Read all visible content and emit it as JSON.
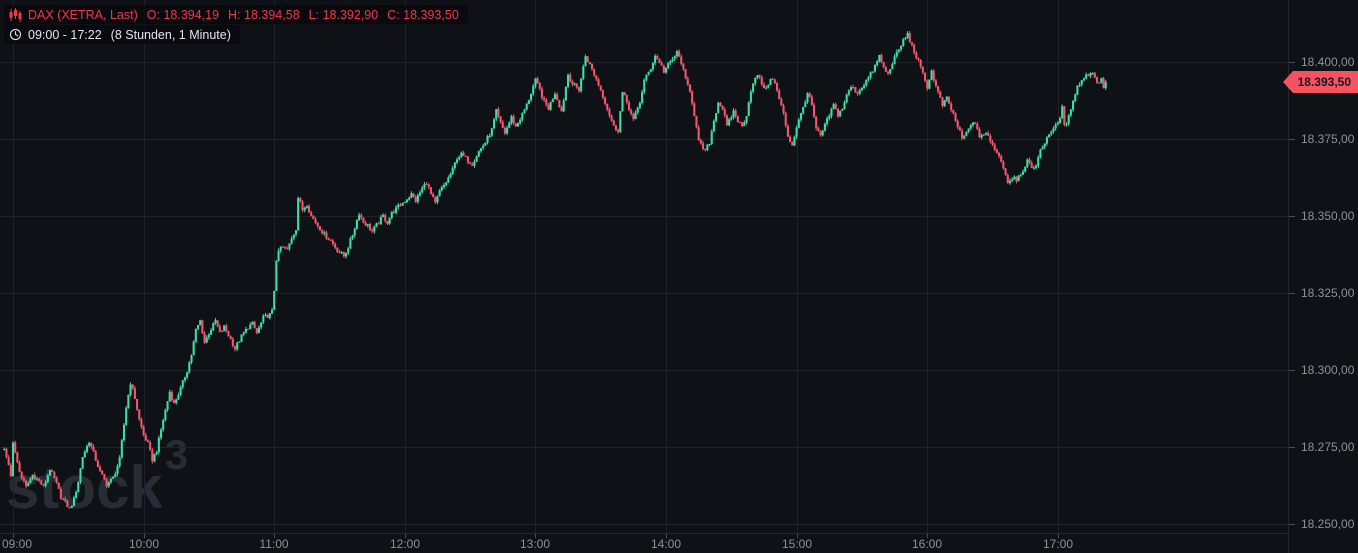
{
  "header": {
    "symbol_line": {
      "icon": "candlestick-icon",
      "symbol": "DAX (XETRA, Last)",
      "ohlc": [
        {
          "label": "O:",
          "value": "18.394,19"
        },
        {
          "label": "H:",
          "value": "18.394,58"
        },
        {
          "label": "L:",
          "value": "18.392,90"
        },
        {
          "label": "C:",
          "value": "18.393,50"
        }
      ]
    },
    "session_line": {
      "icon": "clock-icon",
      "range": "09:00 - 17:22",
      "detail": "(8 Stunden, 1 Minute)"
    }
  },
  "watermark": {
    "text": "stock",
    "sup": "3"
  },
  "price_axis": {
    "ticks": [
      {
        "value": 18400,
        "label": "18.400,00"
      },
      {
        "value": 18375,
        "label": "18.375,00"
      },
      {
        "value": 18350,
        "label": "18.350,00"
      },
      {
        "value": 18325,
        "label": "18.325,00"
      },
      {
        "value": 18300,
        "label": "18.300,00"
      },
      {
        "value": 18275,
        "label": "18.275,00"
      },
      {
        "value": 18250,
        "label": "18.250,00"
      }
    ],
    "last_price_label": "18.393,50",
    "last_price_value": 18393.5
  },
  "time_axis": {
    "ticks": [
      {
        "minute": 0,
        "label": "09:00"
      },
      {
        "minute": 60,
        "label": "10:00"
      },
      {
        "minute": 120,
        "label": "11:00"
      },
      {
        "minute": 180,
        "label": "12:00"
      },
      {
        "minute": 240,
        "label": "13:00"
      },
      {
        "minute": 300,
        "label": "14:00"
      },
      {
        "minute": 360,
        "label": "15:00"
      },
      {
        "minute": 420,
        "label": "16:00"
      },
      {
        "minute": 480,
        "label": "17:00"
      }
    ]
  },
  "chart_data": {
    "type": "candlestick",
    "title": "DAX (XETRA, Last)",
    "interval": "1 Minute",
    "session": "09:00 - 17:22",
    "current_bar": {
      "open": 18394.19,
      "high": 18394.58,
      "low": 18392.9,
      "close": 18393.5
    },
    "last_price": 18393.5,
    "day_open_approx": 18276,
    "day_high_approx": 18410,
    "day_low_approx": 18254,
    "x_tick_labels": [
      "09:00",
      "10:00",
      "11:00",
      "12:00",
      "13:00",
      "14:00",
      "15:00",
      "16:00",
      "17:00"
    ],
    "y_ticks": [
      18400,
      18375,
      18350,
      18325,
      18300,
      18275,
      18250
    ],
    "y_tick_labels": [
      "18.400,00",
      "18.375,00",
      "18.350,00",
      "18.325,00",
      "18.300,00",
      "18.275,00",
      "18.250,00"
    ],
    "ylim": [
      18247,
      18420
    ],
    "xlim_minutes": [
      -6,
      586
    ],
    "grid": true,
    "legend_position": "top-left",
    "colors": {
      "up": "#3adfa8",
      "down": "#f5566c",
      "grid": "#1c212b",
      "background": "#0e1116",
      "accent_red": "#f23645",
      "tag": "#f7525f",
      "axis_text": "#8d919b"
    },
    "keyframes_unit": "minutes since 09:00 (1-minute bars interpolated between keyframes)",
    "price_keyframes": [
      [
        -4,
        18274
      ],
      [
        -2,
        18269
      ],
      [
        -1,
        18266
      ],
      [
        0,
        18277
      ],
      [
        1,
        18273
      ],
      [
        3,
        18267
      ],
      [
        6,
        18262
      ],
      [
        9,
        18266
      ],
      [
        12,
        18264
      ],
      [
        14,
        18262
      ],
      [
        17,
        18268
      ],
      [
        20,
        18263
      ],
      [
        22,
        18259
      ],
      [
        25,
        18256
      ],
      [
        26,
        18255
      ],
      [
        28,
        18258
      ],
      [
        30,
        18264
      ],
      [
        32,
        18272
      ],
      [
        35,
        18277
      ],
      [
        37,
        18273
      ],
      [
        40,
        18267
      ],
      [
        43,
        18263
      ],
      [
        46,
        18265
      ],
      [
        49,
        18271
      ],
      [
        52,
        18288
      ],
      [
        54,
        18296
      ],
      [
        56,
        18291
      ],
      [
        58,
        18284
      ],
      [
        60,
        18279
      ],
      [
        62,
        18276
      ],
      [
        64,
        18271
      ],
      [
        66,
        18274
      ],
      [
        69,
        18284
      ],
      [
        72,
        18293
      ],
      [
        74,
        18289
      ],
      [
        77,
        18294
      ],
      [
        80,
        18300
      ],
      [
        82,
        18305
      ],
      [
        84,
        18313
      ],
      [
        86,
        18316
      ],
      [
        88,
        18309
      ],
      [
        90,
        18312
      ],
      [
        93,
        18316
      ],
      [
        95,
        18312
      ],
      [
        97,
        18314
      ],
      [
        100,
        18310
      ],
      [
        102,
        18307
      ],
      [
        105,
        18311
      ],
      [
        108,
        18314
      ],
      [
        110,
        18315
      ],
      [
        112,
        18312
      ],
      [
        115,
        18317
      ],
      [
        118,
        18318
      ],
      [
        119,
        18319
      ],
      [
        120,
        18326
      ],
      [
        121,
        18336
      ],
      [
        123,
        18340
      ],
      [
        126,
        18339
      ],
      [
        128,
        18343
      ],
      [
        130,
        18346
      ],
      [
        131,
        18356
      ],
      [
        133,
        18352
      ],
      [
        135,
        18354
      ],
      [
        137,
        18350
      ],
      [
        140,
        18347
      ],
      [
        143,
        18344
      ],
      [
        146,
        18342
      ],
      [
        149,
        18339
      ],
      [
        152,
        18337
      ],
      [
        154,
        18340
      ],
      [
        156,
        18344
      ],
      [
        159,
        18351
      ],
      [
        161,
        18348
      ],
      [
        163,
        18347
      ],
      [
        165,
        18345
      ],
      [
        168,
        18348
      ],
      [
        170,
        18350
      ],
      [
        172,
        18348
      ],
      [
        174,
        18351
      ],
      [
        177,
        18353
      ],
      [
        180,
        18355
      ],
      [
        183,
        18357
      ],
      [
        185,
        18355
      ],
      [
        188,
        18359
      ],
      [
        190,
        18361
      ],
      [
        192,
        18357
      ],
      [
        194,
        18354
      ],
      [
        196,
        18358
      ],
      [
        199,
        18361
      ],
      [
        202,
        18365
      ],
      [
        204,
        18369
      ],
      [
        206,
        18370
      ],
      [
        209,
        18368
      ],
      [
        211,
        18367
      ],
      [
        214,
        18371
      ],
      [
        217,
        18374
      ],
      [
        220,
        18378
      ],
      [
        222,
        18384
      ],
      [
        224,
        18380
      ],
      [
        226,
        18377
      ],
      [
        229,
        18382
      ],
      [
        231,
        18379
      ],
      [
        234,
        18383
      ],
      [
        236,
        18386
      ],
      [
        238,
        18390
      ],
      [
        240,
        18394
      ],
      [
        242,
        18391
      ],
      [
        244,
        18387
      ],
      [
        246,
        18385
      ],
      [
        249,
        18390
      ],
      [
        252,
        18384
      ],
      [
        255,
        18396
      ],
      [
        257,
        18393
      ],
      [
        260,
        18391
      ],
      [
        263,
        18402
      ],
      [
        265,
        18399
      ],
      [
        267,
        18396
      ],
      [
        270,
        18391
      ],
      [
        273,
        18385
      ],
      [
        276,
        18379
      ],
      [
        278,
        18378
      ],
      [
        280,
        18390
      ],
      [
        282,
        18387
      ],
      [
        285,
        18381
      ],
      [
        288,
        18387
      ],
      [
        290,
        18394
      ],
      [
        293,
        18398
      ],
      [
        295,
        18402
      ],
      [
        297,
        18400
      ],
      [
        299,
        18397
      ],
      [
        302,
        18400
      ],
      [
        305,
        18403
      ],
      [
        307,
        18400
      ],
      [
        309,
        18394
      ],
      [
        311,
        18391
      ],
      [
        313,
        18383
      ],
      [
        315,
        18374
      ],
      [
        318,
        18371
      ],
      [
        320,
        18374
      ],
      [
        322,
        18381
      ],
      [
        324,
        18387
      ],
      [
        326,
        18385
      ],
      [
        328,
        18379
      ],
      [
        331,
        18384
      ],
      [
        333,
        18381
      ],
      [
        335,
        18379
      ],
      [
        337,
        18383
      ],
      [
        339,
        18391
      ],
      [
        342,
        18396
      ],
      [
        344,
        18393
      ],
      [
        346,
        18391
      ],
      [
        348,
        18395
      ],
      [
        350,
        18393
      ],
      [
        352,
        18388
      ],
      [
        354,
        18383
      ],
      [
        356,
        18376
      ],
      [
        358,
        18373
      ],
      [
        360,
        18379
      ],
      [
        362,
        18383
      ],
      [
        365,
        18390
      ],
      [
        367,
        18386
      ],
      [
        369,
        18378
      ],
      [
        371,
        18376
      ],
      [
        374,
        18381
      ],
      [
        377,
        18386
      ],
      [
        379,
        18383
      ],
      [
        381,
        18385
      ],
      [
        383,
        18389
      ],
      [
        385,
        18392
      ],
      [
        388,
        18390
      ],
      [
        390,
        18392
      ],
      [
        392,
        18394
      ],
      [
        394,
        18396
      ],
      [
        397,
        18400
      ],
      [
        398,
        18402
      ],
      [
        400,
        18398
      ],
      [
        402,
        18396
      ],
      [
        404,
        18400
      ],
      [
        407,
        18404
      ],
      [
        409,
        18407
      ],
      [
        411,
        18409
      ],
      [
        413,
        18405
      ],
      [
        416,
        18400
      ],
      [
        418,
        18396
      ],
      [
        420,
        18392
      ],
      [
        422,
        18397
      ],
      [
        424,
        18392
      ],
      [
        427,
        18386
      ],
      [
        429,
        18388
      ],
      [
        432,
        18383
      ],
      [
        434,
        18379
      ],
      [
        436,
        18375
      ],
      [
        439,
        18378
      ],
      [
        441,
        18381
      ],
      [
        444,
        18376
      ],
      [
        447,
        18377
      ],
      [
        449,
        18374
      ],
      [
        452,
        18371
      ],
      [
        455,
        18366
      ],
      [
        457,
        18361
      ],
      [
        460,
        18363
      ],
      [
        461,
        18362
      ],
      [
        464,
        18365
      ],
      [
        466,
        18368
      ],
      [
        468,
        18365
      ],
      [
        470,
        18367
      ],
      [
        472,
        18371
      ],
      [
        474,
        18374
      ],
      [
        476,
        18377
      ],
      [
        479,
        18379
      ],
      [
        480,
        18380
      ],
      [
        482,
        18385
      ],
      [
        483,
        18379
      ],
      [
        485,
        18382
      ],
      [
        487,
        18388
      ],
      [
        489,
        18392
      ],
      [
        492,
        18395
      ],
      [
        494,
        18396
      ],
      [
        496,
        18397
      ],
      [
        498,
        18393
      ],
      [
        500,
        18395
      ],
      [
        501,
        18391
      ],
      [
        502,
        18393.5
      ]
    ]
  }
}
